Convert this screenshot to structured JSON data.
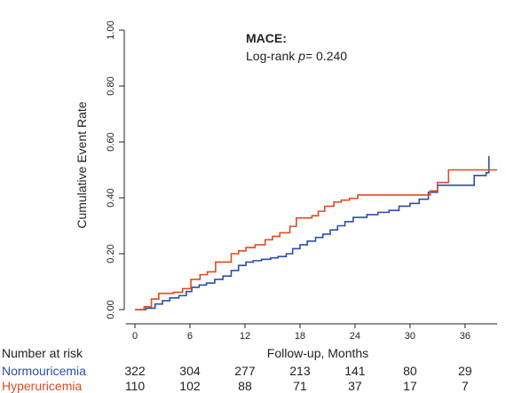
{
  "chart_data": {
    "type": "line",
    "title": "MACE:",
    "subtitle_prefix": "Log-rank ",
    "subtitle_var": "p",
    "subtitle_value": "= 0.240",
    "xlabel": "Follow-up, Months",
    "ylabel": "Cumulative Event Rate",
    "xlim": [
      -1,
      39.5
    ],
    "ylim": [
      0,
      1.0
    ],
    "xticks": [
      0,
      6,
      12,
      18,
      24,
      30,
      36
    ],
    "yticks": [
      0.0,
      0.2,
      0.4,
      0.6,
      0.8,
      1.0
    ],
    "ytick_labels": [
      "0.00",
      "0.20",
      "0.40",
      "0.60",
      "0.80",
      "1.00"
    ],
    "grid": false,
    "series": [
      {
        "name": "Normouricemia",
        "color": "#2b4fa8",
        "steps": [
          [
            0,
            0.0
          ],
          [
            1.2,
            0.005
          ],
          [
            2.2,
            0.02
          ],
          [
            3.0,
            0.032
          ],
          [
            3.8,
            0.042
          ],
          [
            4.8,
            0.05
          ],
          [
            5.6,
            0.065
          ],
          [
            6.2,
            0.08
          ],
          [
            7.0,
            0.088
          ],
          [
            7.8,
            0.095
          ],
          [
            8.7,
            0.108
          ],
          [
            9.6,
            0.12
          ],
          [
            10.5,
            0.14
          ],
          [
            11.3,
            0.158
          ],
          [
            12.1,
            0.17
          ],
          [
            12.9,
            0.175
          ],
          [
            13.8,
            0.18
          ],
          [
            14.8,
            0.185
          ],
          [
            15.6,
            0.19
          ],
          [
            16.5,
            0.2
          ],
          [
            17.2,
            0.218
          ],
          [
            18.0,
            0.232
          ],
          [
            18.8,
            0.245
          ],
          [
            19.7,
            0.258
          ],
          [
            20.5,
            0.27
          ],
          [
            21.3,
            0.285
          ],
          [
            22.1,
            0.3
          ],
          [
            22.9,
            0.315
          ],
          [
            23.8,
            0.33
          ],
          [
            25.3,
            0.34
          ],
          [
            26.5,
            0.348
          ],
          [
            27.7,
            0.355
          ],
          [
            28.8,
            0.37
          ],
          [
            30.0,
            0.38
          ],
          [
            31.0,
            0.395
          ],
          [
            32.0,
            0.42
          ],
          [
            33.0,
            0.445
          ],
          [
            37.0,
            0.48
          ],
          [
            38.3,
            0.49
          ],
          [
            38.6,
            0.55
          ]
        ]
      },
      {
        "name": "Hyperuricemia",
        "color": "#e04a1f",
        "steps": [
          [
            0,
            0.0
          ],
          [
            1.0,
            0.01
          ],
          [
            1.8,
            0.038
          ],
          [
            2.6,
            0.058
          ],
          [
            4.2,
            0.062
          ],
          [
            5.2,
            0.075
          ],
          [
            6.1,
            0.108
          ],
          [
            7.1,
            0.125
          ],
          [
            7.9,
            0.135
          ],
          [
            8.8,
            0.17
          ],
          [
            10.5,
            0.2
          ],
          [
            11.3,
            0.21
          ],
          [
            12.1,
            0.222
          ],
          [
            13.1,
            0.232
          ],
          [
            14.2,
            0.25
          ],
          [
            15.0,
            0.262
          ],
          [
            15.8,
            0.275
          ],
          [
            16.9,
            0.298
          ],
          [
            17.6,
            0.328
          ],
          [
            19.3,
            0.336
          ],
          [
            20.0,
            0.352
          ],
          [
            20.7,
            0.37
          ],
          [
            21.7,
            0.385
          ],
          [
            22.5,
            0.392
          ],
          [
            23.4,
            0.398
          ],
          [
            24.3,
            0.41
          ],
          [
            32.2,
            0.425
          ],
          [
            33.0,
            0.455
          ],
          [
            34.2,
            0.5
          ],
          [
            39.5,
            0.5
          ]
        ]
      }
    ],
    "risk_table": {
      "header": "Number at risk",
      "times": [
        0,
        6,
        12,
        18,
        24,
        30,
        36
      ],
      "rows": [
        {
          "name": "Normouricemia",
          "color": "#2b4fa8",
          "values": [
            322,
            304,
            277,
            213,
            141,
            80,
            29
          ]
        },
        {
          "name": "Hyperuricemia",
          "color": "#e04a1f",
          "values": [
            110,
            102,
            88,
            71,
            37,
            17,
            7
          ]
        }
      ]
    }
  }
}
